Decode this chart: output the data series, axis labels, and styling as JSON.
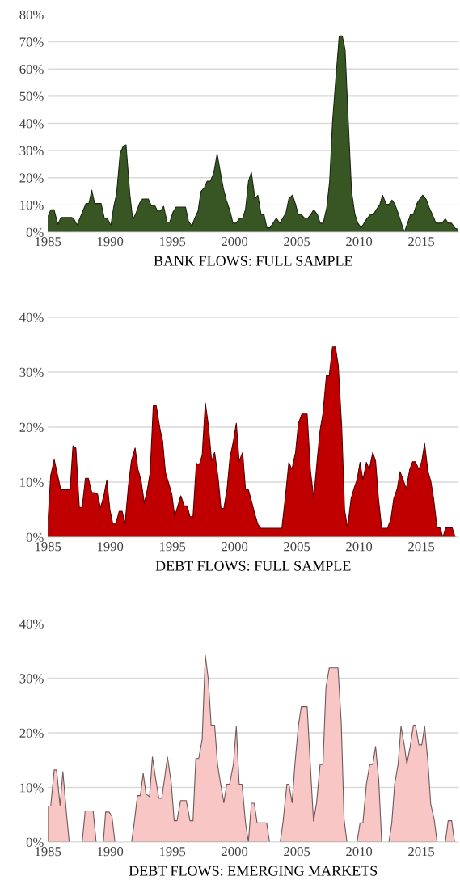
{
  "chart_data": [
    {
      "type": "area",
      "xlabel": "BANK FLOWS: FULL SAMPLE",
      "color": "#375623",
      "grid": "y",
      "x": [
        1985.0,
        1985.24,
        1985.5,
        1985.8,
        1986.06,
        1986.9,
        1987.06,
        1987.35,
        1988.06,
        1988.3,
        1988.53,
        1988.76,
        1989.28,
        1989.54,
        1989.78,
        1990.06,
        1990.3,
        1990.53,
        1990.81,
        1991.05,
        1991.28,
        1991.59,
        1991.82,
        1992.06,
        1992.36,
        1992.6,
        1993.07,
        1993.3,
        1993.59,
        1993.8,
        1994.06,
        1994.3,
        1994.58,
        1994.8,
        1995.05,
        1995.3,
        1996.06,
        1996.3,
        1996.58,
        1996.8,
        1997.07,
        1997.3,
        1997.59,
        1997.8,
        1998.06,
        1998.34,
        1998.6,
        1998.84,
        1999.1,
        1999.35,
        1999.63,
        1999.87,
        2000.13,
        2000.4,
        2000.65,
        2000.88,
        2001.12,
        2001.35,
        2001.64,
        2001.87,
        2002.13,
        2002.36,
        2002.6,
        2002.84,
        2003.12,
        2003.35,
        2003.64,
        2003.87,
        2004.13,
        2004.36,
        2004.65,
        2004.88,
        2005.12,
        2005.35,
        2005.64,
        2005.87,
        2006.13,
        2006.36,
        2006.65,
        2006.88,
        2007.12,
        2007.4,
        2007.64,
        2007.87,
        2008.13,
        2008.41,
        2008.65,
        2008.88,
        2009.12,
        2009.4,
        2009.66,
        2009.9,
        2010.18,
        2010.41,
        2010.65,
        2010.93,
        2011.16,
        2011.4,
        2011.66,
        2011.89,
        2012.18,
        2012.41,
        2012.65,
        2012.88,
        2013.16,
        2013.4,
        2013.64,
        2013.9,
        2014.13,
        2014.36,
        2014.65,
        2014.88,
        2015.12,
        2015.4,
        2015.64,
        2015.87,
        2016.18,
        2016.41,
        2016.65,
        2016.93,
        2017.16,
        2017.42,
        2017.7,
        2017.94
      ],
      "values": [
        5.7,
        8.2,
        8.2,
        2.9,
        5.4,
        5.4,
        5.1,
        2.6,
        10.5,
        10.5,
        15.4,
        10.5,
        10.5,
        5.1,
        5.1,
        2.4,
        9.5,
        14.3,
        29.0,
        31.5,
        32.1,
        13.8,
        4.6,
        6.7,
        10.5,
        12.2,
        12.2,
        9.8,
        9.8,
        7.8,
        7.8,
        9.5,
        3.7,
        3.7,
        7.3,
        9.2,
        9.2,
        4.0,
        2.2,
        5.1,
        7.8,
        14.9,
        16.5,
        18.7,
        18.7,
        22.0,
        28.8,
        22.5,
        16.0,
        11.6,
        7.8,
        3.3,
        3.3,
        5.1,
        5.1,
        8.4,
        18.7,
        22.0,
        12.2,
        13.6,
        6.5,
        6.5,
        1.6,
        1.6,
        3.5,
        5.1,
        3.3,
        5.1,
        7.1,
        12.2,
        13.6,
        10.5,
        6.5,
        6.5,
        5.1,
        5.1,
        6.5,
        8.2,
        6.5,
        3.3,
        3.3,
        8.9,
        18.7,
        40.4,
        56.2,
        72.2,
        72.2,
        67.1,
        42.1,
        14.9,
        6.7,
        3.3,
        1.6,
        3.3,
        5.1,
        6.5,
        6.5,
        8.4,
        10.0,
        13.6,
        10.2,
        10.2,
        11.8,
        10.2,
        6.7,
        3.3,
        0,
        3.3,
        6.5,
        6.5,
        10.5,
        12.2,
        13.6,
        12.0,
        8.9,
        6.7,
        3.3,
        3.3,
        3.3,
        4.9,
        3.3,
        3.3,
        1.5,
        1.0
      ],
      "xlim": [
        1985,
        2018
      ],
      "xticks": [
        1985,
        1990,
        1995,
        2000,
        2005,
        2010,
        2015
      ],
      "ylim": [
        0,
        80
      ],
      "yticks": [
        {
          "value": 0,
          "label": "0%"
        },
        {
          "value": 10,
          "label": "10%"
        },
        {
          "value": 20,
          "label": "20%"
        },
        {
          "value": 30,
          "label": "30%"
        },
        {
          "value": 40,
          "label": "40%"
        },
        {
          "value": 50,
          "label": "50%"
        },
        {
          "value": 60,
          "label": "60%"
        },
        {
          "value": 70,
          "label": "70%"
        },
        {
          "value": 80,
          "label": "80%"
        }
      ]
    },
    {
      "type": "area",
      "xlabel": "DEBT FLOWS: FULL SAMPLE",
      "color": "#c00000",
      "grid": "y",
      "x": [
        1985.0,
        1985.23,
        1985.51,
        1985.79,
        1986.04,
        1986.79,
        1987.02,
        1987.25,
        1987.53,
        1987.76,
        1988.02,
        1988.25,
        1988.53,
        1988.76,
        1988.99,
        1989.23,
        1989.5,
        1989.74,
        1989.99,
        1990.22,
        1990.46,
        1990.73,
        1990.97,
        1991.2,
        1991.48,
        1991.71,
        1992.01,
        1992.24,
        1992.48,
        1992.75,
        1992.99,
        1993.22,
        1993.47,
        1993.71,
        1993.99,
        1994.22,
        1994.45,
        1994.73,
        1994.96,
        1995.19,
        1995.45,
        1995.68,
        1995.96,
        1996.19,
        1996.42,
        1996.66,
        1996.93,
        1997.17,
        1997.4,
        1997.65,
        1997.89,
        1998.16,
        1998.4,
        1998.68,
        1998.91,
        1999.14,
        1999.4,
        1999.63,
        1999.91,
        2000.14,
        2000.37,
        2000.65,
        2000.88,
        2001.11,
        2001.37,
        2001.6,
        2001.88,
        2002.11,
        2003.8,
        2004.09,
        2004.36,
        2004.6,
        2004.9,
        2005.13,
        2005.41,
        2005.83,
        2006.1,
        2006.36,
        2006.64,
        2006.87,
        2007.1,
        2007.38,
        2007.61,
        2007.87,
        2008.1,
        2008.33,
        2008.61,
        2008.84,
        2009.08,
        2009.36,
        2009.59,
        2009.84,
        2010.08,
        2010.31,
        2010.59,
        2010.82,
        2011.1,
        2011.33,
        2011.56,
        2011.82,
        2012.28,
        2012.56,
        2012.79,
        2013.07,
        2013.3,
        2013.54,
        2013.79,
        2014.07,
        2014.3,
        2014.53,
        2014.81,
        2015.04,
        2015.27,
        2015.53,
        2015.76,
        2015.99,
        2016.27,
        2016.5,
        2016.74,
        2016.97,
        2017.48,
        2017.72
      ],
      "values": [
        2.8,
        11.2,
        14.1,
        11.2,
        8.6,
        8.6,
        16.6,
        16.2,
        5.4,
        5.4,
        10.7,
        10.7,
        8.1,
        8.1,
        7.8,
        5.3,
        7.5,
        10.4,
        4.9,
        2.4,
        2.4,
        4.7,
        4.7,
        2.4,
        9.4,
        13.8,
        16.2,
        12.3,
        10.4,
        6.2,
        8.6,
        11.7,
        23.9,
        23.9,
        19.9,
        17.5,
        11.7,
        9.6,
        7.8,
        3.8,
        5.7,
        7.5,
        5.7,
        5.7,
        3.7,
        3.7,
        13.4,
        13.2,
        14.9,
        24.4,
        20.4,
        13.8,
        15.4,
        10.7,
        5.2,
        5.2,
        8.8,
        14.4,
        17.5,
        20.7,
        13.8,
        15.4,
        8.6,
        8.6,
        6.5,
        4.4,
        2.3,
        1.6,
        1.6,
        7.5,
        13.6,
        12.3,
        15.4,
        20.7,
        22.4,
        22.4,
        12.0,
        7.0,
        14.1,
        19.4,
        22.5,
        29.4,
        29.4,
        34.6,
        34.6,
        31.2,
        19.9,
        4.9,
        1.7,
        7.0,
        8.8,
        10.4,
        13.6,
        10.4,
        13.6,
        12.3,
        15.4,
        13.8,
        7.0,
        1.6,
        1.6,
        3.3,
        7.0,
        8.8,
        11.9,
        10.4,
        8.8,
        12.3,
        13.7,
        13.7,
        12.3,
        13.8,
        17.0,
        12.0,
        10.2,
        7.0,
        1.7,
        1.7,
        0,
        1.7,
        1.7,
        0
      ],
      "xlim": [
        1985,
        2018
      ],
      "xticks": [
        1985,
        1990,
        1995,
        2000,
        2005,
        2010,
        2015
      ],
      "ylim": [
        0,
        40
      ],
      "yticks": [
        {
          "value": 0,
          "label": "0%"
        },
        {
          "value": 10,
          "label": "10%"
        },
        {
          "value": 20,
          "label": "20%"
        },
        {
          "value": 30,
          "label": "30%"
        },
        {
          "value": 40,
          "label": "40%"
        }
      ]
    },
    {
      "type": "area",
      "xlabel": "DEBT FLOWS: EMERGING MARKETS",
      "color": "#f9c6c6",
      "grid": "y",
      "x": [
        1985.0,
        1985.23,
        1985.51,
        1985.7,
        1985.98,
        1986.21,
        1986.49,
        1986.72,
        1987.2,
        1987.76,
        1988.0,
        1988.64,
        1988.88,
        1989.2,
        1989.46,
        1989.64,
        1989.92,
        1990.15,
        1990.39,
        1991.0,
        1991.73,
        1991.97,
        1992.2,
        1992.43,
        1992.66,
        1992.89,
        1993.17,
        1993.4,
        1993.64,
        1993.92,
        1994.15,
        1994.38,
        1994.61,
        1994.91,
        1995.15,
        1995.38,
        1995.66,
        1996.12,
        1996.42,
        1996.66,
        1996.89,
        1997.12,
        1997.4,
        1997.65,
        1997.89,
        1998.12,
        1998.4,
        1998.63,
        1998.86,
        1999.14,
        1999.37,
        1999.6,
        1999.91,
        2000.14,
        2000.37,
        2000.6,
        2000.88,
        2001.11,
        2001.35,
        2001.58,
        2001.81,
        2002.58,
        2002.81,
        2003.3,
        2003.67,
        2003.9,
        2004.2,
        2004.36,
        2004.62,
        2004.85,
        2005.13,
        2005.36,
        2005.83,
        2006.1,
        2006.34,
        2006.59,
        2006.87,
        2007.1,
        2007.34,
        2007.61,
        2008.31,
        2008.57,
        2008.8,
        2009.03,
        2009.5,
        2009.84,
        2010.08,
        2010.31,
        2010.59,
        2010.86,
        2011.1,
        2011.33,
        2011.58,
        2011.82,
        2012.2,
        2012.4,
        2012.63,
        2012.86,
        2013.14,
        2013.37,
        2013.65,
        2013.84,
        2014.11,
        2014.37,
        2014.53,
        2014.81,
        2015.04,
        2015.27,
        2015.53,
        2015.76,
        2016.04,
        2016.27,
        2016.8,
        2016.93,
        2017.16,
        2017.44,
        2017.67
      ],
      "values": [
        6.6,
        6.6,
        13.2,
        13.2,
        6.7,
        12.9,
        5.4,
        0,
        null,
        0,
        5.7,
        5.7,
        0,
        null,
        0,
        5.5,
        5.5,
        4.7,
        0,
        null,
        0,
        4.1,
        8.5,
        8.5,
        12.6,
        8.8,
        8.3,
        15.6,
        11.9,
        8.0,
        8.0,
        11.7,
        15.6,
        10.9,
        3.9,
        3.9,
        7.6,
        7.6,
        3.9,
        3.9,
        15.3,
        15.3,
        18.8,
        34.2,
        29.8,
        21.4,
        21.4,
        14.3,
        10.9,
        7.2,
        10.6,
        10.6,
        14.3,
        21.2,
        10.6,
        10.6,
        3.5,
        0,
        7.1,
        7.1,
        3.5,
        3.5,
        0,
        null,
        0,
        3.8,
        10.6,
        10.6,
        7.2,
        14.3,
        21.4,
        24.8,
        24.8,
        13.5,
        3.8,
        7.2,
        14.2,
        14.2,
        28.3,
        31.9,
        31.9,
        21.9,
        4.1,
        0,
        null,
        0,
        3.5,
        3.5,
        10.6,
        14.2,
        14.2,
        17.5,
        11.4,
        0,
        null,
        0,
        3.5,
        10.6,
        14.3,
        21.2,
        17.5,
        14.3,
        17.5,
        21.4,
        21.4,
        17.8,
        17.8,
        21.2,
        14.8,
        6.9,
        4.1,
        0,
        null,
        0,
        3.9,
        3.9,
        0
      ],
      "xlim": [
        1985,
        2018
      ],
      "xticks": [
        1985,
        1990,
        1995,
        2000,
        2005,
        2010,
        2015
      ],
      "ylim": [
        0,
        40
      ],
      "yticks": [
        {
          "value": 0,
          "label": "0%"
        },
        {
          "value": 10,
          "label": "10%"
        },
        {
          "value": 20,
          "label": "20%"
        },
        {
          "value": 30,
          "label": "30%"
        },
        {
          "value": 40,
          "label": "40%"
        }
      ]
    }
  ]
}
